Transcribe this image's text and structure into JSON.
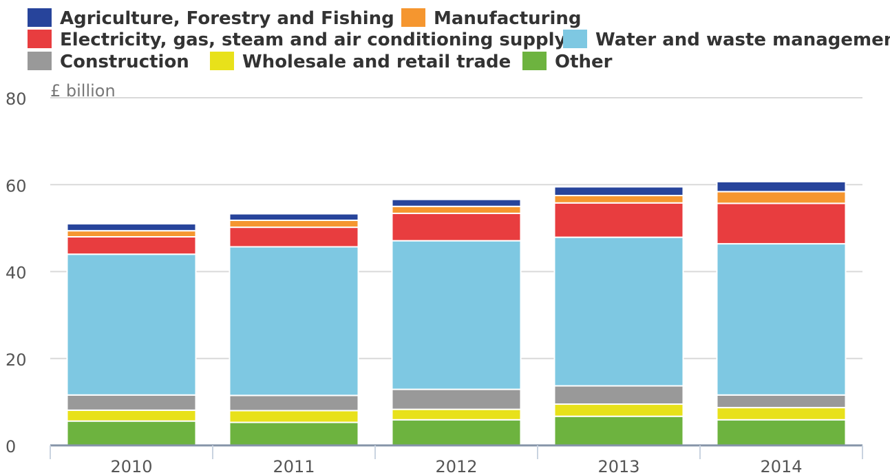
{
  "chart_data": {
    "type": "bar",
    "stacked": true,
    "ylabel": "£ billion",
    "ylim": [
      0,
      80
    ],
    "yticks": [
      "0",
      "20",
      "40",
      "60",
      "80"
    ],
    "grid": true,
    "legend_position": "top",
    "categories": [
      "2010",
      "2011",
      "2012",
      "2013",
      "2014"
    ],
    "series": [
      {
        "name": "Other",
        "color": "#6db33f",
        "values": [
          5.6,
          5.3,
          5.9,
          6.7,
          5.9
        ]
      },
      {
        "name": "Wholesale and retail trade",
        "color": "#e8e11a",
        "values": [
          2.5,
          2.7,
          2.4,
          2.8,
          2.8
        ]
      },
      {
        "name": "Construction",
        "color": "#999999",
        "values": [
          3.5,
          3.5,
          4.6,
          4.2,
          2.9
        ]
      },
      {
        "name": "Water and waste management",
        "color": "#7ec8e2",
        "values": [
          32.4,
          34.2,
          34.2,
          34.2,
          34.8
        ]
      },
      {
        "name": "Electricity, gas, steam and air conditioning supply",
        "color": "#e83d3f",
        "values": [
          4.0,
          4.5,
          6.3,
          7.9,
          9.3
        ]
      },
      {
        "name": "Manufacturing",
        "color": "#f5962f",
        "values": [
          1.4,
          1.6,
          1.6,
          1.7,
          2.7
        ]
      },
      {
        "name": "Agriculture, Forestry and Fishing",
        "color": "#27449b",
        "values": [
          1.6,
          1.5,
          1.6,
          2.0,
          2.3
        ]
      }
    ]
  }
}
